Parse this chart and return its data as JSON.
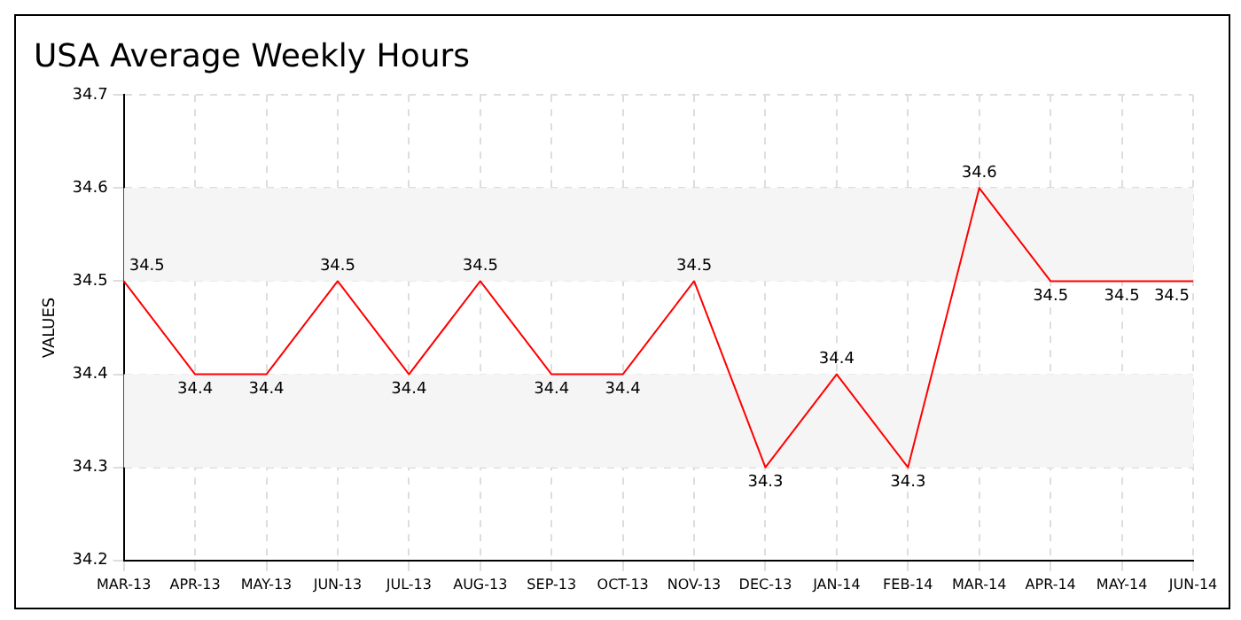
{
  "chart_data": {
    "type": "line",
    "title": "USA Average Weekly Hours",
    "ylabel": "VALUES",
    "categories": [
      "MAR-13",
      "APR-13",
      "MAY-13",
      "JUN-13",
      "JUL-13",
      "AUG-13",
      "SEP-13",
      "OCT-13",
      "NOV-13",
      "DEC-13",
      "JAN-14",
      "FEB-14",
      "MAR-14",
      "APR-14",
      "MAY-14",
      "JUN-14"
    ],
    "series": [
      {
        "color": "#ff0000",
        "values": [
          34.5,
          34.4,
          34.4,
          34.5,
          34.4,
          34.5,
          34.4,
          34.4,
          34.5,
          34.3,
          34.4,
          34.3,
          34.6,
          34.5,
          34.5,
          34.5
        ]
      }
    ],
    "ylim": [
      34.2,
      34.7
    ],
    "yticks": [
      34.2,
      34.3,
      34.4,
      34.5,
      34.6,
      34.7
    ],
    "bands": [
      {
        "axis": "y",
        "from": 34.3,
        "to": 34.4,
        "color": "#f5f5f5"
      },
      {
        "axis": "y",
        "from": 34.5,
        "to": 34.6,
        "color": "#f5f5f5"
      }
    ],
    "grid": true,
    "data_labels": true,
    "marker": "none",
    "line_style": "solid",
    "legend": false
  }
}
